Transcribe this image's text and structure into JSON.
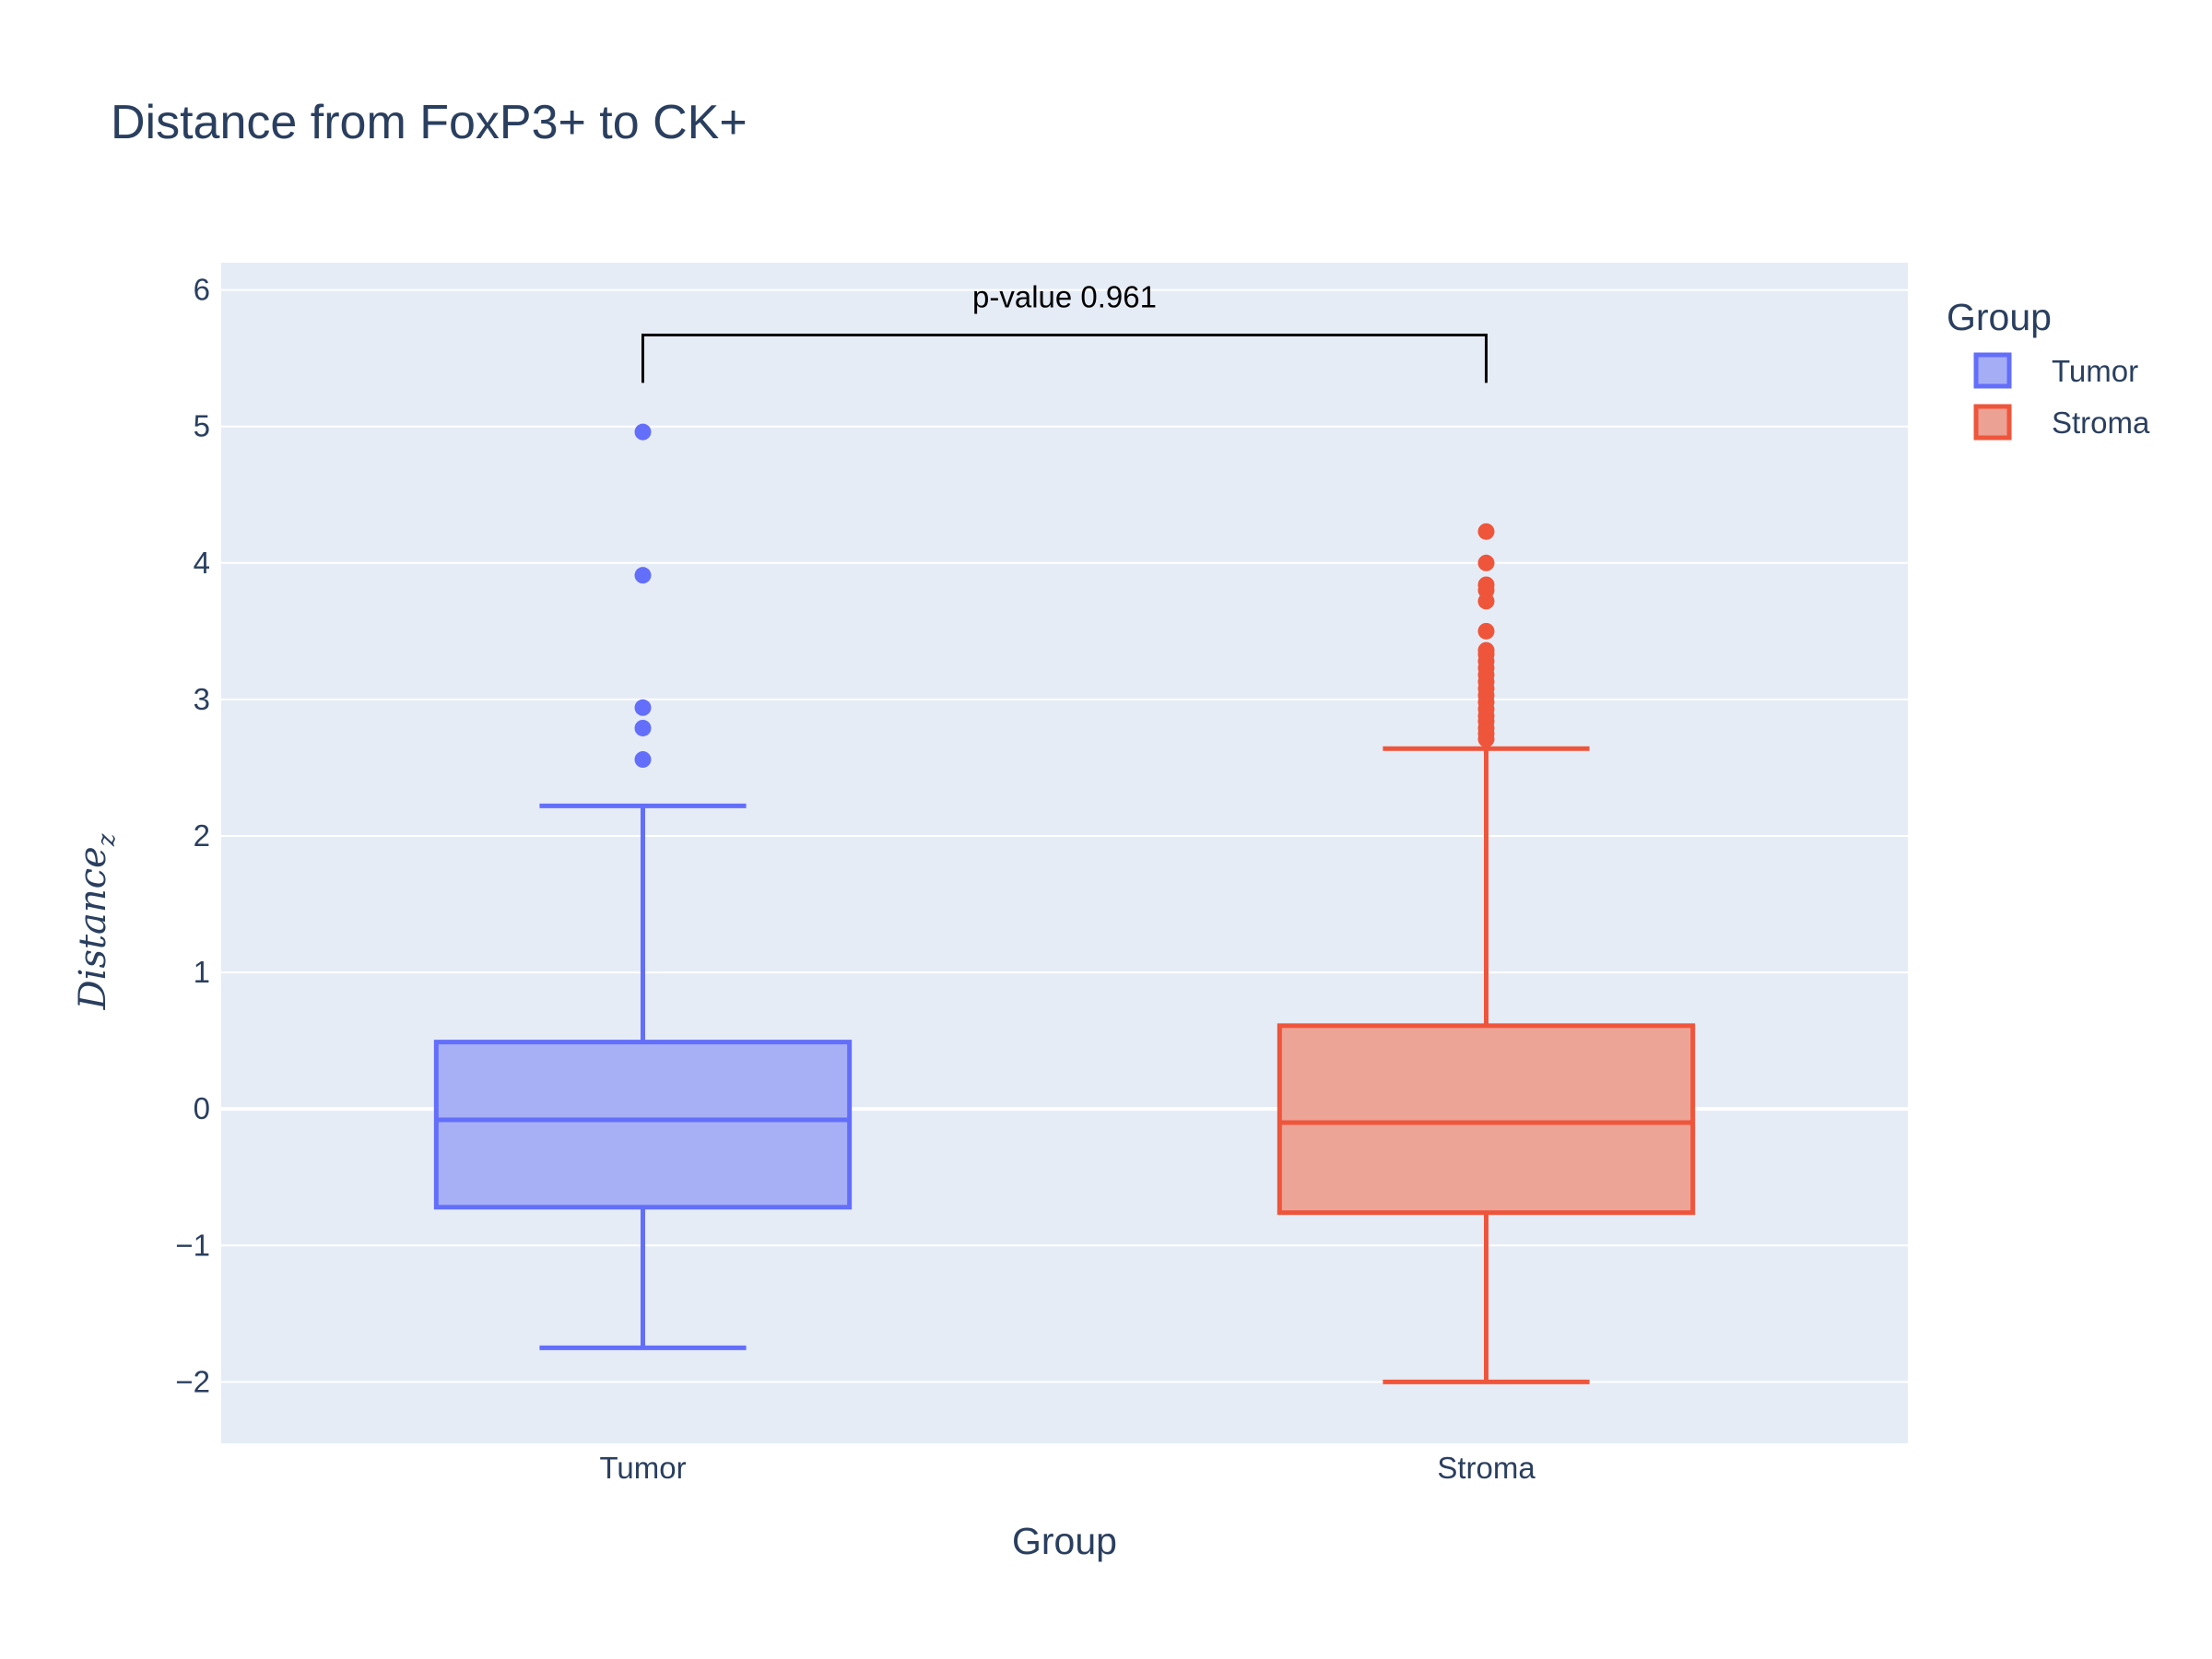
{
  "chart_data": {
    "type": "box",
    "title": "Distance from FoxP3+ to CK+",
    "xlabel": "Group",
    "ylabel": {
      "base": "Distance",
      "subscript": "z"
    },
    "ylim": [
      -2.45,
      6.2
    ],
    "yticks": [
      -2,
      -1,
      0,
      1,
      2,
      3,
      4,
      5,
      6
    ],
    "ytick_labels": [
      "−2",
      "−1",
      "0",
      "1",
      "2",
      "3",
      "4",
      "5",
      "6"
    ],
    "categories": [
      "Tumor",
      "Stroma"
    ],
    "grid": true,
    "legend": {
      "title": "Group",
      "placement": "top-right"
    },
    "series": [
      {
        "name": "Tumor",
        "color": "#636efa",
        "fill": "#a5adf5",
        "lowerfence": -1.75,
        "q1": -0.72,
        "median": -0.08,
        "q3": 0.49,
        "upperfence": 2.22,
        "outliers": [
          2.56,
          2.79,
          2.94,
          3.91,
          4.96
        ]
      },
      {
        "name": "Stroma",
        "color": "#ef553b",
        "fill": "#eba194",
        "lowerfence": -2.0,
        "q1": -0.76,
        "median": -0.1,
        "q3": 0.61,
        "upperfence": 2.64,
        "outliers": [
          2.71,
          2.75,
          2.79,
          2.84,
          2.88,
          2.93,
          2.98,
          3.03,
          3.08,
          3.13,
          3.18,
          3.23,
          3.28,
          3.33,
          3.36,
          3.5,
          3.72,
          3.8,
          3.84,
          4.0,
          4.23
        ]
      }
    ],
    "annotation": {
      "text": "p-value 0.961",
      "bracket_y": 5.67,
      "bracket_drop_y": 5.32
    }
  }
}
